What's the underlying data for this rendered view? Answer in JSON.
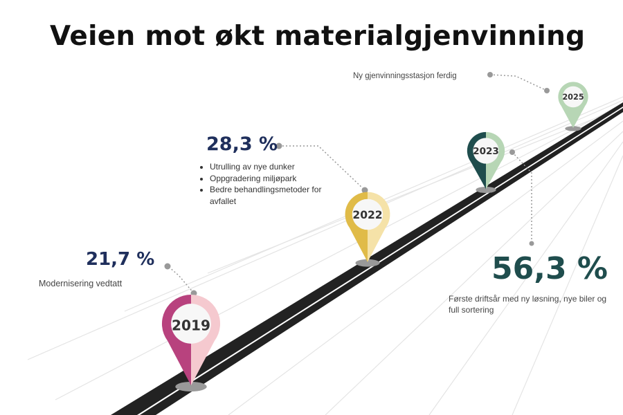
{
  "title": "Veien mot økt materialgjenvinning",
  "milestones": [
    {
      "year": "2019",
      "percent": "21,7 %",
      "description": "Modernisering vedtatt",
      "color_dark": "#b8427e",
      "color_light": "#f5c9cf"
    },
    {
      "year": "2022",
      "percent": "28,3 %",
      "bullets": [
        "Utrulling av nye dunker",
        "Oppgradering miljøpark",
        "Bedre behandlingsmetoder for avfallet"
      ],
      "color_dark": "#e0bb48",
      "color_light": "#f5e2a8"
    },
    {
      "year": "2023",
      "percent": "56,3 %",
      "description": "Første driftsår med ny løsning, nye biler og full sortering",
      "color_dark": "#1f4d4d",
      "color_light": "#b7d6b5"
    },
    {
      "year": "2025",
      "description": "Ny gjenvinningsstasjon ferdig",
      "color_dark": "#b7d6b5",
      "color_light": "#d4e8d3"
    }
  ],
  "colors": {
    "road": "#222222",
    "road_line": "#ffffff",
    "connector": "#999999",
    "pin_shadow": "#999999"
  }
}
